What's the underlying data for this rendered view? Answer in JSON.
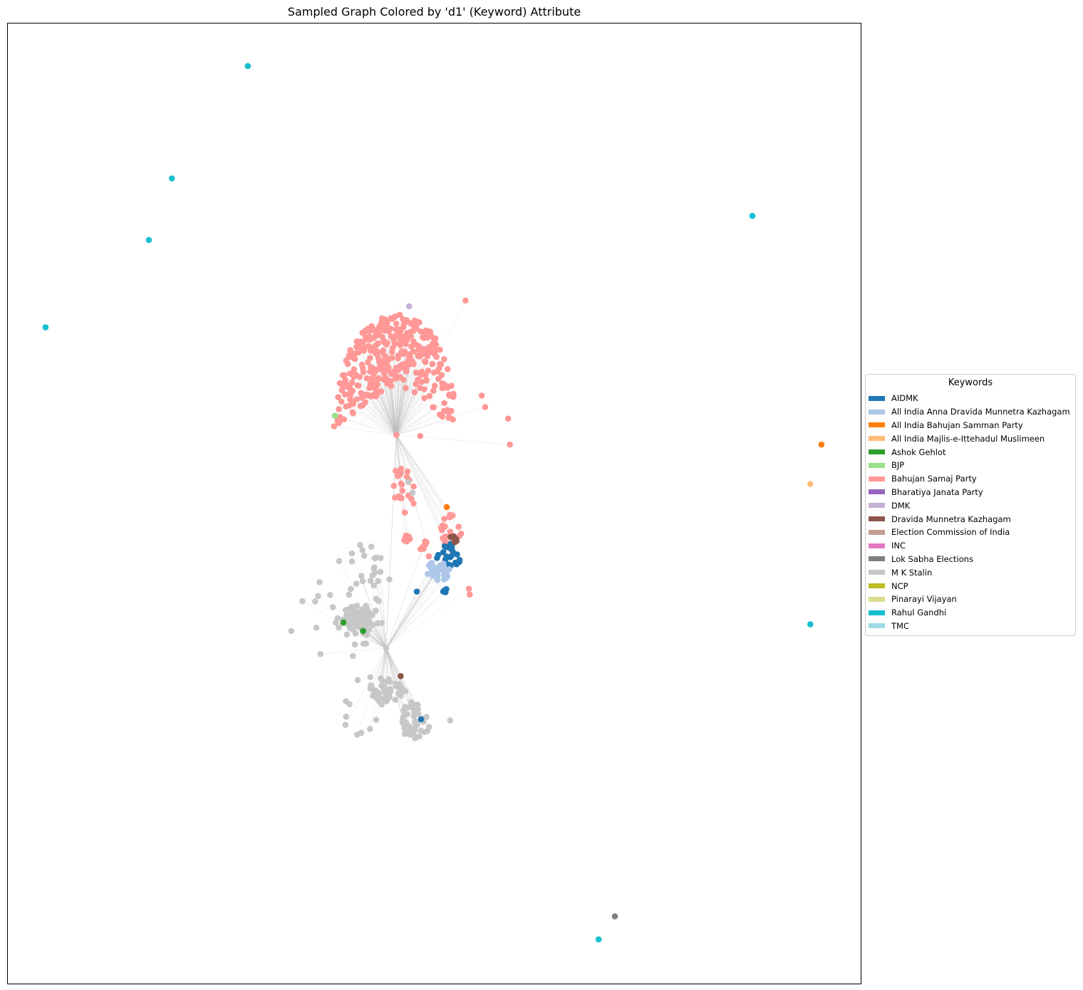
{
  "chart_data": {
    "type": "scatter",
    "title": "Sampled Graph Colored by 'd1' (Keyword) Attribute",
    "xlabel": "",
    "ylabel": "",
    "legend": {
      "title": "Keywords",
      "placement": "right",
      "entries": [
        {
          "label": "AIDMK",
          "color": "#1f77b4"
        },
        {
          "label": "All India Anna Dravida Munnetra Kazhagam",
          "color": "#aec7e8"
        },
        {
          "label": "All India Bahujan Samman Party",
          "color": "#ff7f0e"
        },
        {
          "label": "All India Majlis-e-Ittehadul Muslimeen",
          "color": "#ffbb78"
        },
        {
          "label": "Ashok Gehlot",
          "color": "#2ca02c"
        },
        {
          "label": "BJP",
          "color": "#98df8a"
        },
        {
          "label": "Bahujan Samaj Party",
          "color": "#ff9896"
        },
        {
          "label": "Bharatiya Janata Party",
          "color": "#9467bd"
        },
        {
          "label": "DMK",
          "color": "#c5b0d5"
        },
        {
          "label": "Dravida Munnetra Kazhagam",
          "color": "#8c564b"
        },
        {
          "label": "Election Commission of India",
          "color": "#c49c94"
        },
        {
          "label": "INC",
          "color": "#e377c2"
        },
        {
          "label": "Lok Sabha Elections",
          "color": "#7f7f7f"
        },
        {
          "label": "M K Stalin",
          "color": "#c7c7c7"
        },
        {
          "label": "NCP",
          "color": "#bcbd22"
        },
        {
          "label": "Pinarayi Vijayan",
          "color": "#dbdb8d"
        },
        {
          "label": "Rahul Gandhi",
          "color": "#17becf"
        },
        {
          "label": "TMC",
          "color": "#9edae5"
        }
      ]
    },
    "axes_visible": false,
    "grid": false,
    "xlim": [
      0,
      1
    ],
    "ylim": [
      0,
      1
    ],
    "clusters": [
      {
        "keyword": "Bahujan Samaj Party",
        "shape": "dome",
        "cx": 0.456,
        "cy": 0.626,
        "rx": 0.075,
        "ry": 0.131,
        "count": 360
      },
      {
        "keyword": "Bahujan Samaj Party",
        "shape": "blob",
        "cx": 0.465,
        "cy": 0.515,
        "rx": 0.015,
        "ry": 0.025,
        "count": 22
      },
      {
        "keyword": "Bahujan Samaj Party",
        "shape": "blob",
        "cx": 0.52,
        "cy": 0.47,
        "rx": 0.012,
        "ry": 0.018,
        "count": 22
      },
      {
        "keyword": "Bahujan Samaj Party",
        "shape": "blob",
        "cx": 0.468,
        "cy": 0.463,
        "rx": 0.004,
        "ry": 0.004,
        "count": 8
      },
      {
        "keyword": "Bahujan Samaj Party",
        "shape": "blob",
        "cx": 0.49,
        "cy": 0.454,
        "rx": 0.006,
        "ry": 0.014,
        "count": 8
      },
      {
        "keyword": "AIDMK",
        "shape": "blob",
        "cx": 0.517,
        "cy": 0.444,
        "rx": 0.014,
        "ry": 0.014,
        "count": 26
      },
      {
        "keyword": "AIDMK",
        "shape": "blob",
        "cx": 0.513,
        "cy": 0.408,
        "rx": 0.003,
        "ry": 0.003,
        "count": 5
      },
      {
        "keyword": "All India Anna Dravida Munnetra Kazhagam",
        "shape": "blob",
        "cx": 0.505,
        "cy": 0.43,
        "rx": 0.015,
        "ry": 0.012,
        "count": 26
      },
      {
        "keyword": "Dravida Munnetra Kazhagam",
        "shape": "blob",
        "cx": 0.523,
        "cy": 0.462,
        "rx": 0.004,
        "ry": 0.006,
        "count": 7
      },
      {
        "keyword": "M K Stalin",
        "shape": "blob",
        "cx": 0.412,
        "cy": 0.378,
        "rx": 0.02,
        "ry": 0.017,
        "count": 75
      },
      {
        "keyword": "M K Stalin",
        "shape": "blob",
        "cx": 0.445,
        "cy": 0.305,
        "rx": 0.022,
        "ry": 0.012,
        "count": 45
      },
      {
        "keyword": "M K Stalin",
        "shape": "blob",
        "cx": 0.478,
        "cy": 0.274,
        "rx": 0.018,
        "ry": 0.021,
        "count": 45
      },
      {
        "keyword": "M K Stalin",
        "shape": "blob",
        "cx": 0.405,
        "cy": 0.405,
        "rx": 0.055,
        "ry": 0.055,
        "count": 45
      },
      {
        "keyword": "M K Stalin",
        "shape": "blob",
        "cx": 0.425,
        "cy": 0.29,
        "rx": 0.04,
        "ry": 0.03,
        "count": 14
      }
    ],
    "hub_nodes": [
      {
        "x": 0.456,
        "y": 0.571,
        "keyword": "Bahujan Samaj Party"
      },
      {
        "x": 0.444,
        "y": 0.349,
        "keyword": "M K Stalin"
      }
    ],
    "points": [
      {
        "x": 0.282,
        "y": 0.955,
        "keyword": "Rahul Gandhi"
      },
      {
        "x": 0.193,
        "y": 0.838,
        "keyword": "Rahul Gandhi"
      },
      {
        "x": 0.166,
        "y": 0.774,
        "keyword": "Rahul Gandhi"
      },
      {
        "x": 0.045,
        "y": 0.683,
        "keyword": "Rahul Gandhi"
      },
      {
        "x": 0.873,
        "y": 0.799,
        "keyword": "Rahul Gandhi"
      },
      {
        "x": 0.941,
        "y": 0.374,
        "keyword": "Rahul Gandhi"
      },
      {
        "x": 0.693,
        "y": 0.046,
        "keyword": "Rahul Gandhi"
      },
      {
        "x": 0.954,
        "y": 0.561,
        "keyword": "All India Bahujan Samman Party"
      },
      {
        "x": 0.941,
        "y": 0.52,
        "keyword": "All India Majlis-e-Ittehadul Muslimeen"
      },
      {
        "x": 0.712,
        "y": 0.07,
        "keyword": "Lok Sabha Elections"
      },
      {
        "x": 0.384,
        "y": 0.591,
        "keyword": "BJP"
      },
      {
        "x": 0.394,
        "y": 0.376,
        "keyword": "Ashok Gehlot"
      },
      {
        "x": 0.417,
        "y": 0.367,
        "keyword": "Ashok Gehlot"
      },
      {
        "x": 0.461,
        "y": 0.32,
        "keyword": "Dravida Munnetra Kazhagam"
      },
      {
        "x": 0.485,
        "y": 0.275,
        "keyword": "AIDMK"
      },
      {
        "x": 0.48,
        "y": 0.408,
        "keyword": "AIDMK"
      },
      {
        "x": 0.515,
        "y": 0.496,
        "keyword": "All India Bahujan Samman Party"
      },
      {
        "x": 0.471,
        "y": 0.705,
        "keyword": "DMK"
      },
      {
        "x": 0.537,
        "y": 0.711,
        "keyword": "Bahujan Samaj Party"
      },
      {
        "x": 0.556,
        "y": 0.612,
        "keyword": "Bahujan Samaj Party"
      },
      {
        "x": 0.56,
        "y": 0.6,
        "keyword": "Bahujan Samaj Party"
      },
      {
        "x": 0.587,
        "y": 0.588,
        "keyword": "Bahujan Samaj Party"
      },
      {
        "x": 0.589,
        "y": 0.561,
        "keyword": "Bahujan Samaj Party"
      },
      {
        "x": 0.484,
        "y": 0.57,
        "keyword": "Bahujan Samaj Party"
      },
      {
        "x": 0.541,
        "y": 0.411,
        "keyword": "Bahujan Samaj Party"
      },
      {
        "x": 0.542,
        "y": 0.405,
        "keyword": "Bahujan Samaj Party"
      },
      {
        "x": 0.383,
        "y": 0.58,
        "keyword": "Bahujan Samaj Party"
      },
      {
        "x": 0.333,
        "y": 0.367,
        "keyword": "M K Stalin"
      },
      {
        "x": 0.367,
        "y": 0.343,
        "keyword": "M K Stalin"
      },
      {
        "x": 0.405,
        "y": 0.341,
        "keyword": "M K Stalin"
      },
      {
        "x": 0.41,
        "y": 0.259,
        "keyword": "M K Stalin"
      },
      {
        "x": 0.519,
        "y": 0.274,
        "keyword": "M K Stalin"
      },
      {
        "x": 0.346,
        "y": 0.398,
        "keyword": "M K Stalin"
      },
      {
        "x": 0.47,
        "y": 0.522,
        "keyword": "M K Stalin"
      },
      {
        "x": 0.475,
        "y": 0.511,
        "keyword": "M K Stalin"
      }
    ]
  }
}
